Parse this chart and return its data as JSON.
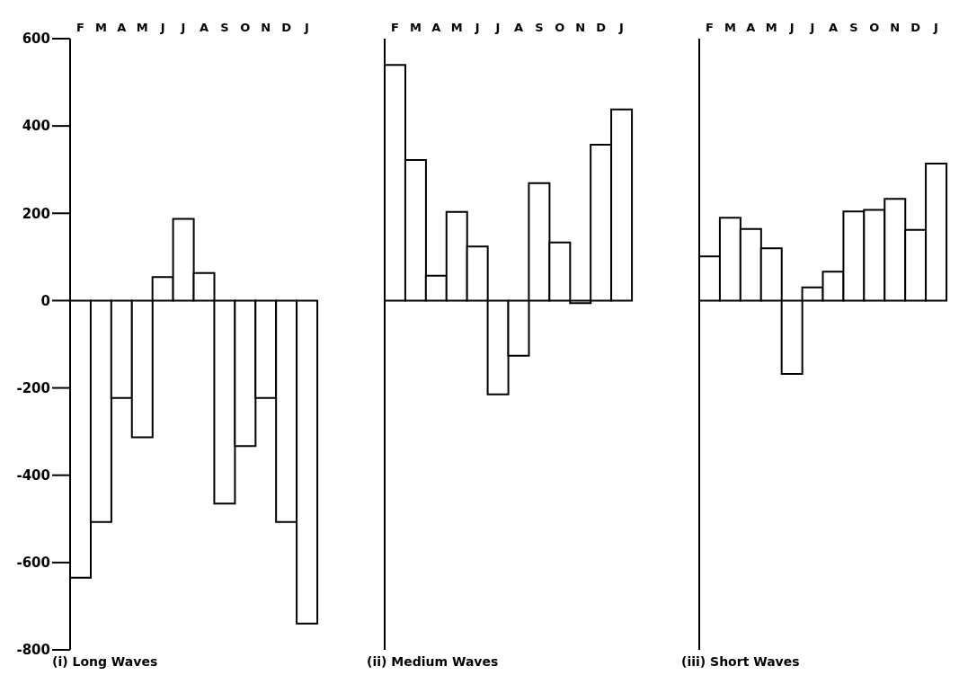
{
  "chart_data": [
    {
      "type": "bar",
      "title": "(i) Long Waves",
      "categories": [
        "F",
        "M",
        "A",
        "M",
        "J",
        "J",
        "A",
        "S",
        "O",
        "N",
        "D",
        "J"
      ],
      "values": [
        -635,
        -507,
        -223,
        -313,
        54,
        187,
        63,
        -465,
        -333,
        -223,
        -507,
        -740
      ],
      "color": "#ffffff",
      "ylim": [
        -800,
        600
      ],
      "yticks": [
        -800,
        -600,
        -400,
        -200,
        0,
        200,
        400,
        600
      ]
    },
    {
      "type": "bar",
      "title": "(ii) Medium Waves",
      "categories": [
        "F",
        "M",
        "A",
        "M",
        "J",
        "J",
        "A",
        "S",
        "O",
        "N",
        "D",
        "J"
      ],
      "values": [
        540,
        322,
        57,
        203,
        124,
        -215,
        -126,
        269,
        133,
        -6,
        357,
        438
      ],
      "color": "#ffffff",
      "ylim": [
        -800,
        600
      ],
      "yticks": [
        -800,
        -600,
        -400,
        -200,
        0,
        200,
        400,
        600
      ],
      "tick_labels": "x"
    },
    {
      "type": "bar",
      "title": "(iii) Short Waves",
      "categories": [
        "F",
        "M",
        "A",
        "M",
        "J",
        "J",
        "A",
        "S",
        "O",
        "N",
        "D",
        "J"
      ],
      "values": [
        101,
        190,
        164,
        120,
        -168,
        30,
        66,
        204,
        208,
        233,
        162,
        314
      ],
      "color": "#ffffff",
      "ylim": [
        -800,
        600
      ],
      "yticks": [
        -800,
        -600,
        -400,
        -200,
        0,
        200,
        400,
        600
      ],
      "tick_labels": "x"
    }
  ]
}
